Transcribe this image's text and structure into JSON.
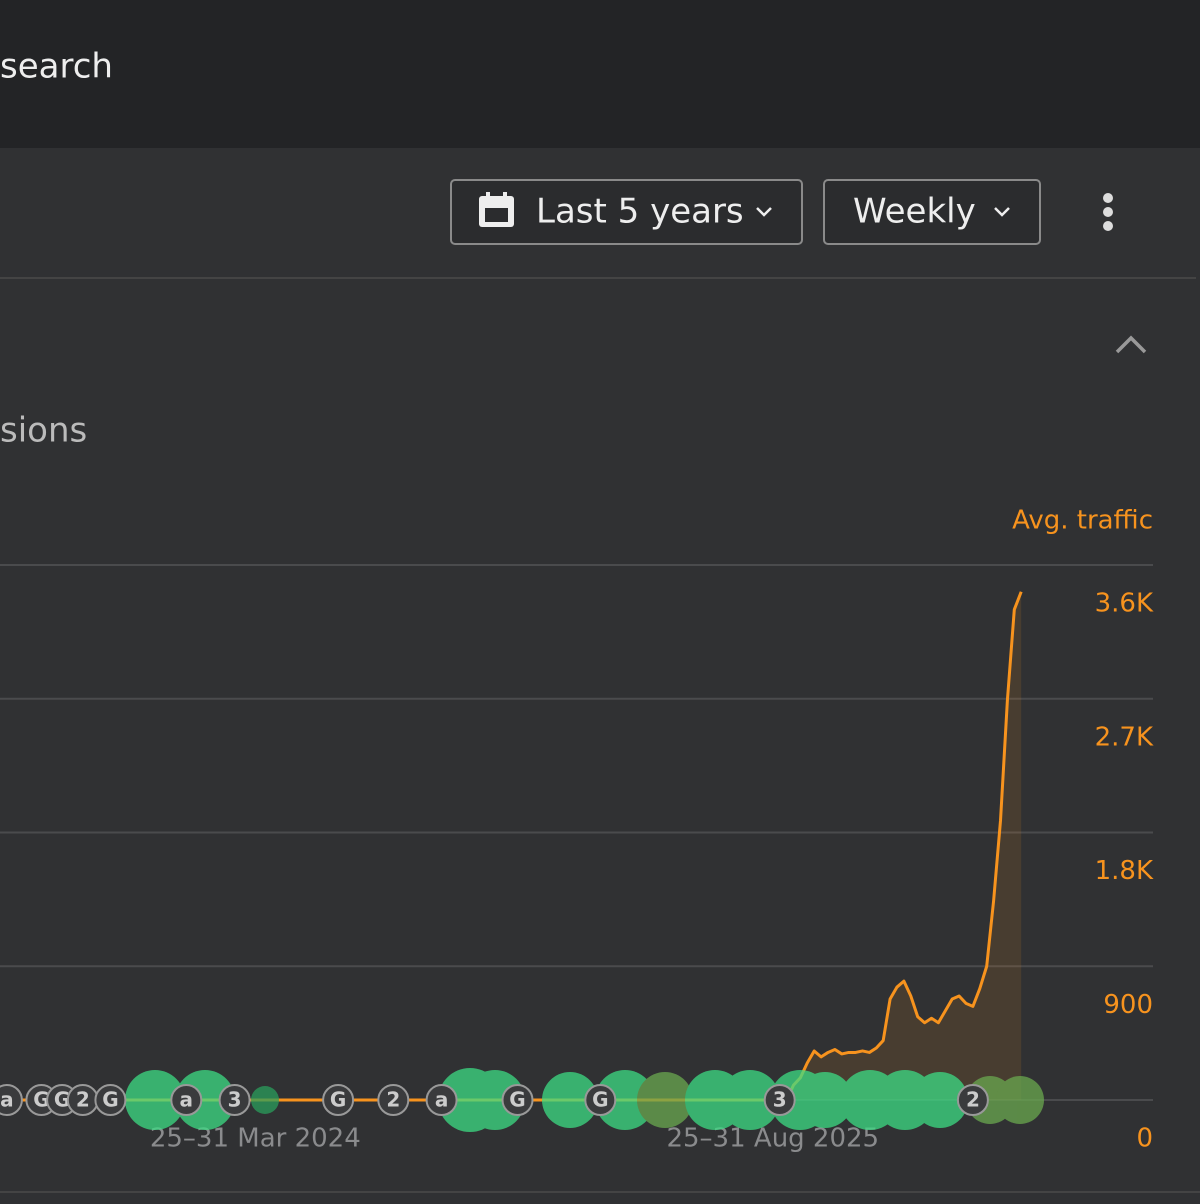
{
  "header": {
    "title": "search"
  },
  "toolbar": {
    "date_range": "Last 5 years",
    "interval": "Weekly"
  },
  "section": {
    "title": "sions"
  },
  "chart_data": {
    "type": "line",
    "y_axis_label": "Avg. traffic",
    "categories": [
      null,
      null,
      null,
      null,
      null,
      null,
      null,
      null,
      null,
      null,
      null,
      null,
      null,
      null,
      null,
      null,
      null,
      null,
      null,
      null,
      null,
      null,
      null,
      null,
      null,
      null,
      null,
      null,
      null,
      null,
      null,
      null,
      null,
      null,
      null,
      null,
      null,
      "25–31 Mar 2024",
      null,
      null,
      null,
      null,
      null,
      null,
      null,
      null,
      null,
      null,
      null,
      null,
      null,
      null,
      null,
      null,
      null,
      null,
      null,
      null,
      null,
      null,
      null,
      null,
      null,
      null,
      null,
      null,
      null,
      null,
      null,
      null,
      null,
      null,
      null,
      null,
      null,
      null,
      null,
      null,
      null,
      null,
      null,
      null,
      null,
      null,
      null,
      null,
      null,
      null,
      null,
      null,
      null,
      null,
      null,
      null,
      null,
      null,
      null,
      null,
      null,
      null,
      null,
      null,
      null,
      null,
      null,
      null,
      null,
      null,
      null,
      null,
      null,
      null,
      "25–31 Aug 2025",
      null,
      null,
      null,
      null,
      null,
      null,
      null,
      null,
      null,
      null,
      null,
      null,
      null,
      null,
      null,
      null,
      null,
      null,
      null,
      null,
      null,
      null,
      null,
      null,
      null,
      null,
      null,
      null,
      null,
      null,
      null,
      null,
      null,
      null,
      null,
      null
    ],
    "series": [
      {
        "name": "Avg. traffic",
        "color": "#f7931e",
        "values": [
          0,
          0,
          0,
          0,
          0,
          0,
          0,
          0,
          0,
          0,
          0,
          0,
          0,
          0,
          0,
          0,
          0,
          0,
          0,
          0,
          0,
          0,
          0,
          0,
          0,
          0,
          0,
          0,
          0,
          0,
          0,
          0,
          0,
          0,
          0,
          0,
          0,
          0,
          0,
          0,
          0,
          0,
          0,
          0,
          0,
          0,
          0,
          0,
          0,
          0,
          0,
          0,
          0,
          0,
          0,
          0,
          0,
          0,
          0,
          0,
          0,
          0,
          0,
          0,
          0,
          0,
          0,
          0,
          0,
          0,
          0,
          0,
          0,
          0,
          0,
          0,
          0,
          0,
          0,
          0,
          0,
          0,
          0,
          0,
          0,
          0,
          0,
          0,
          0,
          0,
          0,
          0,
          0,
          0,
          0,
          0,
          0,
          0,
          0,
          0,
          0,
          0,
          0,
          0,
          0,
          0,
          0,
          0,
          0,
          0,
          0,
          0,
          0,
          0,
          0,
          100,
          150,
          250,
          330,
          290,
          320,
          340,
          310,
          320,
          320,
          330,
          320,
          350,
          400,
          680,
          760,
          800,
          700,
          560,
          520,
          550,
          520,
          600,
          680,
          700,
          650,
          630,
          750,
          900,
          1340,
          1880,
          2690,
          3300,
          3420
        ]
      }
    ],
    "markers": [
      {
        "label": "a",
        "at": 1
      },
      {
        "label": "G",
        "at": 6
      },
      {
        "label": "G",
        "at": 9
      },
      {
        "label": "2",
        "at": 12
      },
      {
        "label": "G",
        "at": 16
      },
      {
        "label": "a",
        "at": 27
      },
      {
        "label": "3",
        "at": 34
      },
      {
        "label": "G",
        "at": 49
      },
      {
        "label": "2",
        "at": 57
      },
      {
        "label": "a",
        "at": 64
      },
      {
        "label": "G",
        "at": 75
      },
      {
        "label": "G",
        "at": 87
      },
      {
        "label": "3",
        "at": 113
      },
      {
        "label": "2",
        "at": 141
      }
    ],
    "ylim": [
      0,
      3600
    ],
    "yticks": [
      0,
      900,
      {
        "value": 1800,
        "label": "1.8K"
      },
      {
        "value": 2700,
        "label": "2.7K"
      },
      {
        "value": 3600,
        "label": "3.6K"
      }
    ],
    "grid": true
  }
}
